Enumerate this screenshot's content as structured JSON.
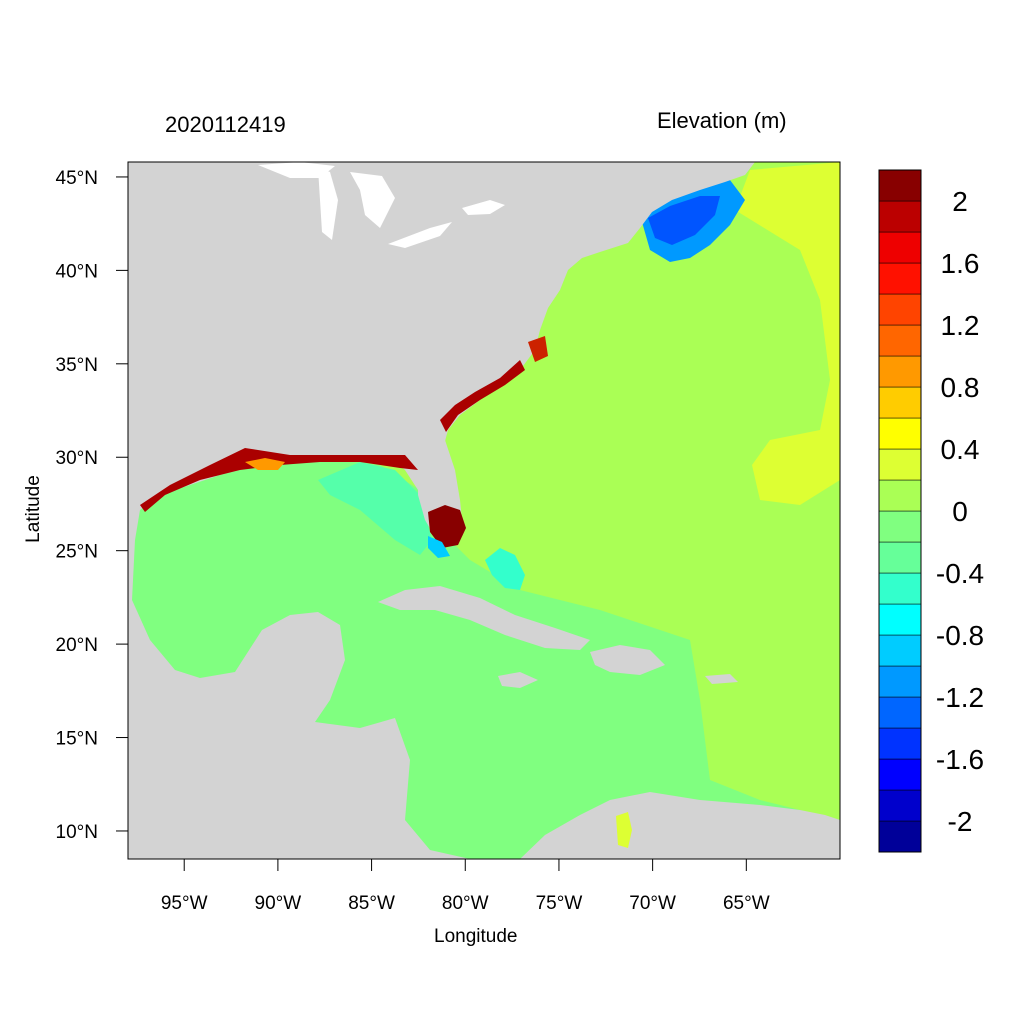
{
  "titles": {
    "left": "2020112419",
    "right": "Elevation (m)"
  },
  "axes": {
    "xlabel": "Longitude",
    "ylabel": "Latitude",
    "lon_ticks": [
      {
        "value": -95,
        "label": "95°W"
      },
      {
        "value": -90,
        "label": "90°W"
      },
      {
        "value": -85,
        "label": "85°W"
      },
      {
        "value": -80,
        "label": "80°W"
      },
      {
        "value": -75,
        "label": "75°W"
      },
      {
        "value": -70,
        "label": "70°W"
      },
      {
        "value": -65,
        "label": "65°W"
      }
    ],
    "lat_ticks": [
      {
        "value": 45,
        "label": "45°N"
      },
      {
        "value": 40,
        "label": "40°N"
      },
      {
        "value": 35,
        "label": "35°N"
      },
      {
        "value": 30,
        "label": "30°N"
      },
      {
        "value": 25,
        "label": "25°N"
      },
      {
        "value": 20,
        "label": "20°N"
      },
      {
        "value": 15,
        "label": "15°N"
      },
      {
        "value": 10,
        "label": "10°N"
      }
    ],
    "lon_range": [
      -98,
      -60
    ],
    "lat_range": [
      8.5,
      45.8
    ]
  },
  "colorbar": {
    "colors": [
      "#000099",
      "#0000cc",
      "#0000ff",
      "#0033ff",
      "#0066ff",
      "#0099ff",
      "#00ccff",
      "#00ffff",
      "#33ffcc",
      "#66ff99",
      "#80ff80",
      "#aaff55",
      "#ddff33",
      "#ffff00",
      "#ffcc00",
      "#ff9900",
      "#ff6600",
      "#ff4400",
      "#ff1100",
      "#ee0000",
      "#bb0000",
      "#880000"
    ],
    "labels": [
      {
        "value": 2,
        "label": "2"
      },
      {
        "value": 1.6,
        "label": "1.6"
      },
      {
        "value": 1.2,
        "label": "1.2"
      },
      {
        "value": 0.8,
        "label": "0.8"
      },
      {
        "value": 0.4,
        "label": "0.4"
      },
      {
        "value": 0,
        "label": "0"
      },
      {
        "value": -0.4,
        "label": "-0.4"
      },
      {
        "value": -0.8,
        "label": "-0.8"
      },
      {
        "value": -1.2,
        "label": "-1.2"
      },
      {
        "value": -1.6,
        "label": "-1.6"
      },
      {
        "value": -2,
        "label": "-2"
      }
    ]
  },
  "map_colors": {
    "land": "#d3d3d3",
    "ocean_open": "#aaff55",
    "ocean_gulf": "#80ff80",
    "ocean_shelf": "#66ff99",
    "positive_surge": "#ddff33",
    "high_surge": "#880000",
    "negative_surge": "#0066ff",
    "lake": "#ffffff"
  }
}
